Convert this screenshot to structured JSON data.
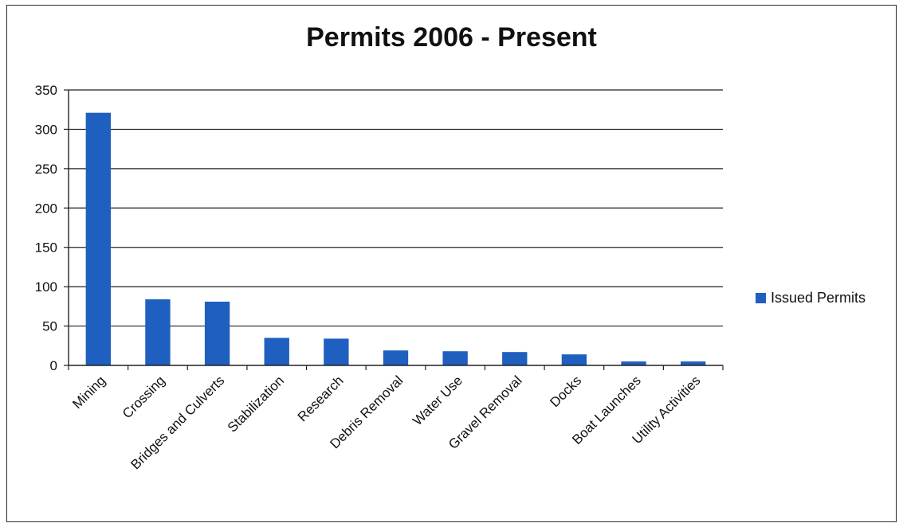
{
  "chart_data": {
    "type": "bar",
    "title": "Permits 2006 - Present",
    "categories": [
      "Mining",
      "Crossing",
      "Bridges and Culverts",
      "Stabilization",
      "Research",
      "Debris Removal",
      "Water Use",
      "Gravel Removal",
      "Docks",
      "Boat Launches",
      "Utility Activities"
    ],
    "series": [
      {
        "name": "Issued Permits",
        "values": [
          321,
          84,
          81,
          35,
          34,
          19,
          18,
          17,
          14,
          5,
          5
        ]
      }
    ],
    "ylim": [
      0,
      350
    ],
    "yticks": [
      "0",
      "50",
      "100",
      "150",
      "200",
      "250",
      "300",
      "350"
    ],
    "grid": true,
    "legend_position": "right",
    "bar_color": "#1f5fbf"
  }
}
